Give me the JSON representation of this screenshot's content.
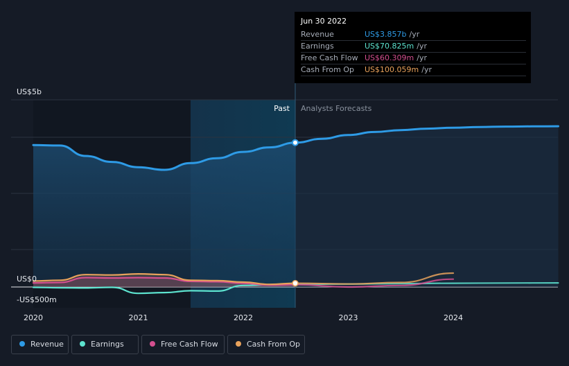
{
  "chart_data": {
    "type": "line",
    "x_ticks": [
      "2020",
      "2021",
      "2022",
      "2023",
      "2024"
    ],
    "y_tick_labels": [
      "US$5b",
      "US$0",
      "-US$500m"
    ],
    "ylim": [
      -500,
      5000
    ],
    "y_unit": "US$m",
    "past_label": "Past",
    "forecast_label": "Analysts Forecasts",
    "series": [
      {
        "name": "Revenue",
        "color": "#2e9be6",
        "points": [
          [
            2020.0,
            3790
          ],
          [
            2020.25,
            3780
          ],
          [
            2020.5,
            3500
          ],
          [
            2020.75,
            3340
          ],
          [
            2021.0,
            3200
          ],
          [
            2021.25,
            3130
          ],
          [
            2021.5,
            3310
          ],
          [
            2021.75,
            3440
          ],
          [
            2022.0,
            3610
          ],
          [
            2022.25,
            3730
          ],
          [
            2022.5,
            3857
          ]
        ],
        "forecast_points": [
          [
            2022.5,
            3857
          ],
          [
            2022.75,
            3960
          ],
          [
            2023.0,
            4060
          ],
          [
            2023.25,
            4140
          ],
          [
            2023.5,
            4190
          ],
          [
            2023.75,
            4230
          ],
          [
            2024.0,
            4255
          ],
          [
            2024.25,
            4275
          ],
          [
            2024.5,
            4285
          ],
          [
            2024.75,
            4290
          ],
          [
            2025.0,
            4295
          ]
        ]
      },
      {
        "name": "Earnings",
        "color": "#5de3cf",
        "points": [
          [
            2020.0,
            -10
          ],
          [
            2020.25,
            -20
          ],
          [
            2020.5,
            -25
          ],
          [
            2020.75,
            -10
          ],
          [
            2021.0,
            -170
          ],
          [
            2021.25,
            -150
          ],
          [
            2021.5,
            -100
          ],
          [
            2021.75,
            -110
          ],
          [
            2022.0,
            40
          ],
          [
            2022.25,
            60
          ],
          [
            2022.5,
            70.825
          ]
        ],
        "forecast_points": [
          [
            2022.5,
            70.825
          ],
          [
            2023.0,
            80
          ],
          [
            2023.5,
            90
          ],
          [
            2024.0,
            100
          ],
          [
            2024.5,
            105
          ],
          [
            2025.0,
            110
          ]
        ]
      },
      {
        "name": "Free Cash Flow",
        "color": "#d44f8f",
        "points": [
          [
            2020.0,
            110
          ],
          [
            2020.25,
            120
          ],
          [
            2020.5,
            250
          ],
          [
            2020.75,
            240
          ],
          [
            2021.0,
            250
          ],
          [
            2021.25,
            240
          ],
          [
            2021.5,
            150
          ],
          [
            2021.75,
            140
          ],
          [
            2022.0,
            100
          ],
          [
            2022.25,
            50
          ],
          [
            2022.5,
            60.309
          ]
        ],
        "forecast_points": [
          [
            2022.5,
            60.309
          ],
          [
            2023.0,
            0
          ],
          [
            2023.5,
            40
          ],
          [
            2024.0,
            210
          ]
        ]
      },
      {
        "name": "Cash From Op",
        "color": "#e8a25c",
        "points": [
          [
            2020.0,
            160
          ],
          [
            2020.25,
            180
          ],
          [
            2020.5,
            330
          ],
          [
            2020.75,
            320
          ],
          [
            2021.0,
            350
          ],
          [
            2021.25,
            330
          ],
          [
            2021.5,
            180
          ],
          [
            2021.75,
            170
          ],
          [
            2022.0,
            130
          ],
          [
            2022.25,
            70
          ],
          [
            2022.5,
            100.059
          ]
        ],
        "forecast_points": [
          [
            2022.5,
            100.059
          ],
          [
            2023.0,
            80
          ],
          [
            2023.5,
            120
          ],
          [
            2024.0,
            370
          ]
        ]
      }
    ],
    "legend_position": "bottom-left"
  },
  "tooltip": {
    "date": "Jun 30 2022",
    "rows": [
      {
        "label": "Revenue",
        "value": "US$3.857b",
        "unit": "/yr",
        "color": "#2e9be6"
      },
      {
        "label": "Earnings",
        "value": "US$70.825m",
        "unit": "/yr",
        "color": "#5de3cf"
      },
      {
        "label": "Free Cash Flow",
        "value": "US$60.309m",
        "unit": "/yr",
        "color": "#d44f8f"
      },
      {
        "label": "Cash From Op",
        "value": "US$100.059m",
        "unit": "/yr",
        "color": "#e8a25c"
      }
    ]
  },
  "legend": [
    {
      "label": "Revenue",
      "color": "#2e9be6"
    },
    {
      "label": "Earnings",
      "color": "#5de3cf"
    },
    {
      "label": "Free Cash Flow",
      "color": "#d44f8f"
    },
    {
      "label": "Cash From Op",
      "color": "#e8a25c"
    }
  ]
}
